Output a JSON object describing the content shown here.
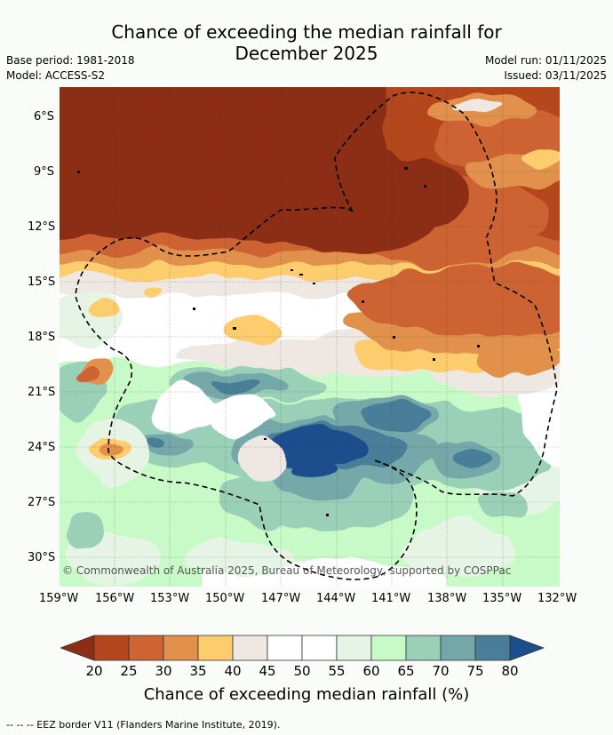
{
  "header": {
    "title_line1": "Chance of exceeding the median rainfall for",
    "title_line2": "December 2025",
    "base_period": "Base period: 1981-2018",
    "model": "Model: ACCESS-S2",
    "model_run": "Model run: 01/11/2025",
    "issued": "Issued: 03/11/2025"
  },
  "map": {
    "lat_ticks": [
      "6°S",
      "9°S",
      "12°S",
      "15°S",
      "18°S",
      "21°S",
      "24°S",
      "27°S",
      "30°S"
    ],
    "lon_ticks": [
      "159°W",
      "156°W",
      "153°W",
      "150°W",
      "147°W",
      "144°W",
      "141°W",
      "138°W",
      "135°W",
      "132°W"
    ],
    "copyright": "© Commonwealth of Australia 2025, Bureau of Meteorology, supported by COSPPac"
  },
  "colorbar": {
    "labels": [
      "20",
      "25",
      "30",
      "35",
      "40",
      "45",
      "50",
      "55",
      "60",
      "65",
      "70",
      "75",
      "80"
    ],
    "colors": [
      "#8c2d18",
      "#b4461e",
      "#cd6432",
      "#e1914b",
      "#fdcc6c",
      "#efe7e2",
      "#ffffff",
      "#ffffff",
      "#e6f4e6",
      "#c8fac8",
      "#9acfb8",
      "#74a8a8",
      "#4a7e98",
      "#1a4e8c"
    ],
    "title": "Chance of exceeding median rainfall (%)"
  },
  "footer": {
    "legend": "--  --  -- EEZ border V11 (Flanders Marine Institute, 2019)."
  }
}
